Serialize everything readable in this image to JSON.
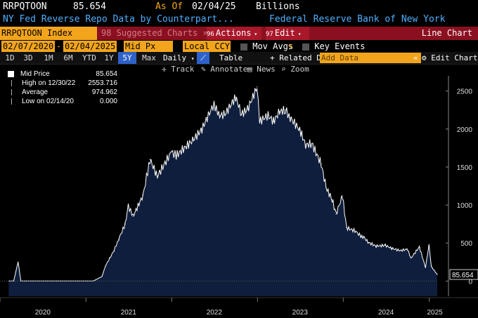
{
  "header": {
    "ticker": "RRPQTOON",
    "last_value": "85.654",
    "as_of_label": "As Of",
    "as_of_date": "02/04/25",
    "units": "Billions",
    "description": "NY Fed Reverse Repo Data by Counterpart...",
    "source": "Federal Reserve Bank of New York"
  },
  "toolbar": {
    "security": "RRPQTOON Index",
    "suggested": "98 Suggested Charts »",
    "actions_num": "96",
    "actions": "Actions",
    "edit_num": "97",
    "edit": "Edit",
    "chart_type": "Line Chart"
  },
  "settings": {
    "start_date": "02/07/2020",
    "end_date": "02/04/2025",
    "field": "Mid Px",
    "currency": "Local CCY",
    "mov_avgs": "Mov Avgs",
    "key_events": "Key Events"
  },
  "timeframes": [
    "1D",
    "3D",
    "1M",
    "6M",
    "YTD",
    "1Y",
    "5Y",
    "Max"
  ],
  "selected_timeframe": "5Y",
  "periodicity": "Daily",
  "table_label": "Table",
  "related_data": "+ Related Dat",
  "add_data_placeholder": "Add Data",
  "edit_chart": "Edit Chart",
  "tools": {
    "track": "Track",
    "annotate": "Annotate",
    "news": "News",
    "zoom": "Zoom"
  },
  "legend": {
    "mid_price_label": "Mid Price",
    "mid_price_value": "85.654",
    "high_label": "High on 12/30/22",
    "high_value": "2553.716",
    "avg_label": "Average",
    "avg_value": "974.962",
    "low_label": "Low on 02/14/20",
    "low_value": "0.000"
  },
  "chart_data": {
    "type": "area",
    "x": [
      "2020-02-07",
      "2020-02-28",
      "2020-03-18",
      "2020-03-30",
      "2020-04-20",
      "2020-09-01",
      "2021-02-01",
      "2021-03-10",
      "2021-03-25",
      "2021-04-12",
      "2021-04-30",
      "2021-05-20",
      "2021-06-17",
      "2021-06-30",
      "2021-07-20",
      "2021-09-01",
      "2021-09-30",
      "2021-11-01",
      "2021-12-31",
      "2022-01-20",
      "2022-03-31",
      "2022-05-10",
      "2022-06-01",
      "2022-06-30",
      "2022-07-20",
      "2022-08-15",
      "2022-09-30",
      "2022-10-25",
      "2022-11-20",
      "2022-12-30",
      "2023-01-10",
      "2023-02-15",
      "2023-03-10",
      "2023-04-05",
      "2023-04-30",
      "2023-05-20",
      "2023-06-30",
      "2023-07-25",
      "2023-08-20",
      "2023-09-29",
      "2023-10-20",
      "2023-11-15",
      "2023-12-01",
      "2023-12-29",
      "2024-01-15",
      "2024-02-20",
      "2024-03-20",
      "2024-03-29",
      "2024-04-15",
      "2024-05-20",
      "2024-06-28",
      "2024-07-25",
      "2024-08-30",
      "2024-09-30",
      "2024-10-15",
      "2024-11-20",
      "2024-12-16",
      "2024-12-31",
      "2025-01-10",
      "2025-02-04"
    ],
    "y": [
      0,
      0,
      250,
      0,
      0,
      0,
      0,
      60,
      200,
      300,
      400,
      550,
      750,
      990,
      850,
      1130,
      1600,
      1380,
      1700,
      1650,
      1850,
      2000,
      2150,
      2330,
      2180,
      2190,
      2420,
      2200,
      2260,
      2554,
      2100,
      2180,
      2100,
      2230,
      2250,
      2150,
      1990,
      1790,
      1810,
      1540,
      1230,
      1070,
      880,
      1120,
      700,
      660,
      580,
      580,
      510,
      460,
      470,
      430,
      400,
      420,
      300,
      450,
      180,
      470,
      190,
      86
    ],
    "xlim": [
      "2020-01-01",
      "2025-02-04"
    ],
    "ylim": [
      -200,
      2700
    ],
    "y_ticks": [
      0,
      500,
      1000,
      1500,
      2000,
      2500
    ],
    "x_ticks": [
      "2020",
      "2021",
      "2022",
      "2023",
      "2024",
      "2025"
    ],
    "last_label": "85.654",
    "fill_color": "#0f1e3c",
    "line_color": "#ffffff",
    "grid": false
  }
}
